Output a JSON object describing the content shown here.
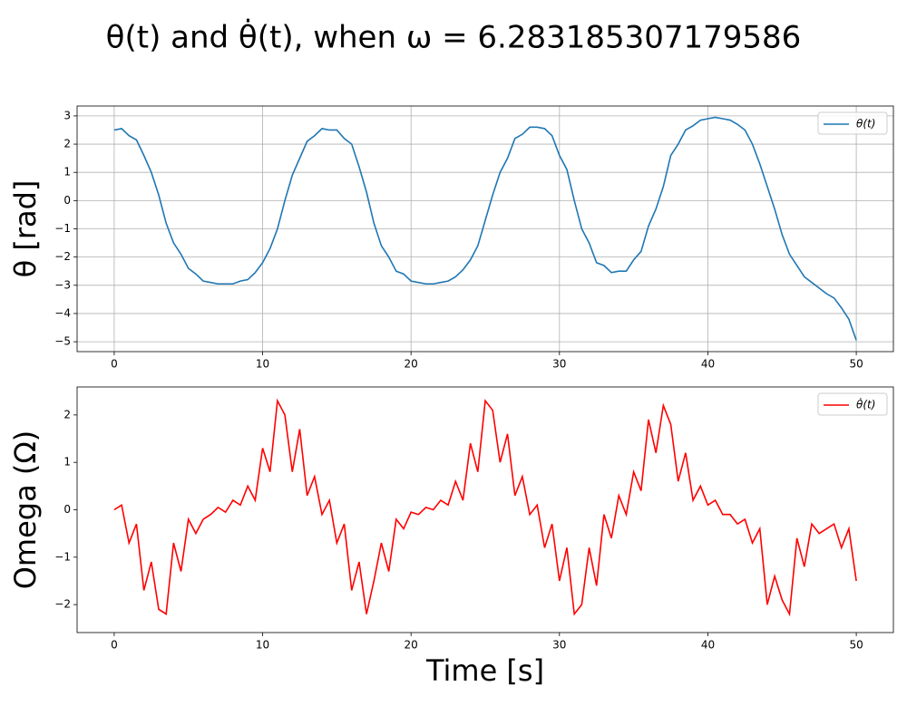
{
  "title": "θ(t) and θ̇(t), when ω = 6.283185307179586",
  "chart_data": [
    {
      "type": "line",
      "ylabel": "θ [rad]",
      "x": [
        0,
        0.5,
        1,
        1.5,
        2,
        2.5,
        3,
        3.5,
        4,
        4.5,
        5,
        5.5,
        6,
        6.5,
        7,
        7.5,
        8,
        8.5,
        9,
        9.5,
        10,
        10.5,
        11,
        11.5,
        12,
        12.5,
        13,
        13.5,
        14,
        14.5,
        15,
        15.5,
        16,
        16.5,
        17,
        17.5,
        18,
        18.5,
        19,
        19.5,
        20,
        20.5,
        21,
        21.5,
        22,
        22.5,
        23,
        23.5,
        24,
        24.5,
        25,
        25.5,
        26,
        26.5,
        27,
        27.5,
        28,
        28.5,
        29,
        29.5,
        30,
        30.5,
        31,
        31.5,
        32,
        32.5,
        33,
        33.5,
        34,
        34.5,
        35,
        35.5,
        36,
        36.5,
        37,
        37.5,
        38,
        38.5,
        39,
        39.5,
        40,
        40.5,
        41,
        41.5,
        42,
        42.5,
        43,
        43.5,
        44,
        44.5,
        45,
        45.5,
        46,
        46.5,
        47,
        47.5,
        48,
        48.5,
        49,
        49.5,
        50
      ],
      "series": [
        {
          "name": "θ(t)",
          "color": "#1f77b4",
          "values": [
            2.5,
            2.55,
            2.3,
            2.15,
            1.6,
            1.0,
            0.2,
            -0.8,
            -1.5,
            -1.9,
            -2.4,
            -2.6,
            -2.85,
            -2.9,
            -2.95,
            -2.95,
            -2.95,
            -2.85,
            -2.8,
            -2.55,
            -2.2,
            -1.7,
            -1.0,
            0.0,
            0.9,
            1.5,
            2.1,
            2.3,
            2.55,
            2.5,
            2.5,
            2.2,
            2.0,
            1.2,
            0.3,
            -0.8,
            -1.6,
            -2.0,
            -2.5,
            -2.6,
            -2.85,
            -2.9,
            -2.95,
            -2.95,
            -2.9,
            -2.85,
            -2.7,
            -2.45,
            -2.1,
            -1.6,
            -0.7,
            0.2,
            1.0,
            1.5,
            2.2,
            2.35,
            2.6,
            2.6,
            2.55,
            2.3,
            1.6,
            1.1,
            0.0,
            -1.0,
            -1.5,
            -2.2,
            -2.3,
            -2.55,
            -2.5,
            -2.5,
            -2.1,
            -1.8,
            -0.9,
            -0.3,
            0.5,
            1.6,
            2.0,
            2.5,
            2.65,
            2.85,
            2.9,
            2.95,
            2.9,
            2.85,
            2.7,
            2.5,
            2.0,
            1.3,
            0.5,
            -0.3,
            -1.2,
            -1.9,
            -2.3,
            -2.7,
            -2.9,
            -3.1,
            -3.3,
            -3.45,
            -3.8,
            -4.2,
            -4.95
          ]
        }
      ],
      "xlim": [
        -2.5,
        52.5
      ],
      "ylim": [
        -5.35,
        3.35
      ],
      "xticks": [
        0,
        10,
        20,
        30,
        40,
        50
      ],
      "yticks": [
        {
          "value": -5,
          "label": "−5"
        },
        {
          "value": -4,
          "label": "−4"
        },
        {
          "value": -3,
          "label": "−3"
        },
        {
          "value": -2,
          "label": "−2"
        },
        {
          "value": -1,
          "label": "−1"
        },
        0,
        1,
        2,
        3
      ],
      "grid": true,
      "legend": "upper-right"
    },
    {
      "type": "line",
      "ylabel": "Omega (Ω)",
      "xlabel": "Time [s]",
      "x": [
        0,
        0.5,
        1,
        1.5,
        2,
        2.5,
        3,
        3.5,
        4,
        4.5,
        5,
        5.5,
        6,
        6.5,
        7,
        7.5,
        8,
        8.5,
        9,
        9.5,
        10,
        10.5,
        11,
        11.5,
        12,
        12.5,
        13,
        13.5,
        14,
        14.5,
        15,
        15.5,
        16,
        16.5,
        17,
        17.5,
        18,
        18.5,
        19,
        19.5,
        20,
        20.5,
        21,
        21.5,
        22,
        22.5,
        23,
        23.5,
        24,
        24.5,
        25,
        25.5,
        26,
        26.5,
        27,
        27.5,
        28,
        28.5,
        29,
        29.5,
        30,
        30.5,
        31,
        31.5,
        32,
        32.5,
        33,
        33.5,
        34,
        34.5,
        35,
        35.5,
        36,
        36.5,
        37,
        37.5,
        38,
        38.5,
        39,
        39.5,
        40,
        40.5,
        41,
        41.5,
        42,
        42.5,
        43,
        43.5,
        44,
        44.5,
        45,
        45.5,
        46,
        46.5,
        47,
        47.5,
        48,
        48.5,
        49,
        49.5,
        50
      ],
      "series": [
        {
          "name": "θ̇(t)",
          "color": "#ff0000",
          "values": [
            0,
            0.1,
            -0.7,
            -0.3,
            -1.7,
            -1.1,
            -2.1,
            -2.2,
            -0.7,
            -1.3,
            -0.2,
            -0.5,
            -0.2,
            -0.1,
            0.05,
            -0.05,
            0.2,
            0.1,
            0.5,
            0.2,
            1.3,
            0.8,
            2.3,
            2.0,
            0.8,
            1.7,
            0.3,
            0.7,
            -0.1,
            0.2,
            -0.7,
            -0.3,
            -1.7,
            -1.1,
            -2.2,
            -1.5,
            -0.7,
            -1.3,
            -0.2,
            -0.4,
            -0.05,
            -0.1,
            0.05,
            0.0,
            0.2,
            0.1,
            0.6,
            0.2,
            1.4,
            0.8,
            2.3,
            2.1,
            1.0,
            1.6,
            0.3,
            0.7,
            -0.1,
            0.1,
            -0.8,
            -0.3,
            -1.5,
            -0.8,
            -2.2,
            -2.0,
            -0.8,
            -1.6,
            -0.1,
            -0.6,
            0.3,
            -0.1,
            0.8,
            0.4,
            1.9,
            1.2,
            2.2,
            1.8,
            0.6,
            1.2,
            0.2,
            0.5,
            0.1,
            0.2,
            -0.1,
            -0.1,
            -0.3,
            -0.2,
            -0.7,
            -0.4,
            -2.0,
            -1.4,
            -1.9,
            -2.2,
            -0.6,
            -1.2,
            -0.3,
            -0.5,
            -0.4,
            -0.3,
            -0.8,
            -0.4,
            -1.5
          ]
        }
      ],
      "xlim": [
        -2.5,
        52.5
      ],
      "ylim": [
        -2.59,
        2.59
      ],
      "xticks": [
        0,
        10,
        20,
        30,
        40,
        50
      ],
      "yticks": [
        {
          "value": -2,
          "label": "−2"
        },
        {
          "value": -1,
          "label": "−1"
        },
        0,
        1,
        2
      ],
      "grid": false,
      "legend": "upper-right"
    }
  ]
}
